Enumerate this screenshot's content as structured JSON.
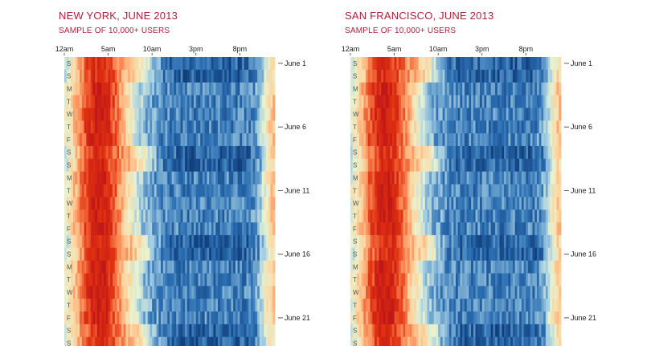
{
  "chart_data": [
    {
      "type": "heatmap",
      "title": "NEW YORK, JUNE 2013",
      "subtitle": "SAMPLE OF 10,000+ USERS",
      "x_ticks": [
        "12am",
        "5am",
        "10am",
        "3pm",
        "8pm"
      ],
      "x_tick_hours": [
        0,
        5,
        10,
        15,
        20
      ],
      "y_range": [
        "2013-06-01",
        "2013-06-23"
      ],
      "day_labels": [
        "S",
        "S",
        "M",
        "T",
        "W",
        "T",
        "F",
        "S",
        "S",
        "M",
        "T",
        "W",
        "T",
        "F",
        "S",
        "S",
        "M",
        "T",
        "W",
        "T",
        "F",
        "S",
        "S"
      ],
      "date_labels": [
        "June 1",
        "June 6",
        "June 11",
        "June 16",
        "June 21"
      ],
      "date_label_days": [
        1,
        6,
        11,
        16,
        21
      ],
      "color_scale": [
        "#08306b",
        "#2c6fb3",
        "#9ecae1",
        "#e8f3d0",
        "#fdd49e",
        "#fc8d59",
        "#e03010",
        "#c01818"
      ]
    },
    {
      "type": "heatmap",
      "title": "SAN FRANCISCO, JUNE 2013",
      "subtitle": "SAMPLE OF 10,000+ USERS",
      "x_ticks": [
        "12am",
        "5am",
        "10am",
        "3pm",
        "8pm"
      ],
      "x_tick_hours": [
        0,
        5,
        10,
        15,
        20
      ],
      "y_range": [
        "2013-06-01",
        "2013-06-23"
      ],
      "day_labels": [
        "S",
        "S",
        "M",
        "T",
        "W",
        "T",
        "F",
        "S",
        "S",
        "M",
        "T",
        "W",
        "T",
        "F",
        "S",
        "S",
        "M",
        "T",
        "W",
        "T",
        "F",
        "S",
        "S"
      ],
      "date_labels": [
        "June 1",
        "June 6",
        "June 11",
        "June 16",
        "June 21"
      ],
      "date_label_days": [
        1,
        6,
        11,
        16,
        21
      ],
      "color_scale": [
        "#08306b",
        "#2c6fb3",
        "#9ecae1",
        "#e8f3d0",
        "#fdd49e",
        "#fc8d59",
        "#e03010",
        "#c01818"
      ]
    }
  ]
}
